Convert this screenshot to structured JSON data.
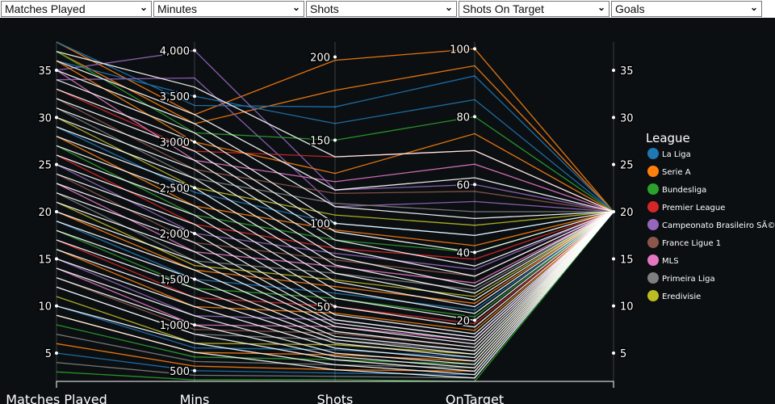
{
  "dropdowns": [
    "Matches Played",
    "Minutes",
    "Shots",
    "Shots On Target",
    "Goals"
  ],
  "chart_data": {
    "type": "parallel-coordinates",
    "dimensions": [
      {
        "label": "Matches Played",
        "range": [
          2,
          38
        ],
        "ticks": [
          5,
          10,
          15,
          20,
          25,
          30,
          35
        ]
      },
      {
        "label": "Mins",
        "range": [
          383,
          4093
        ],
        "ticks": [
          500,
          1000,
          1500,
          2000,
          2500,
          3000,
          3500,
          4000
        ]
      },
      {
        "label": "Shots",
        "range": [
          5,
          209
        ],
        "ticks": [
          50,
          100,
          150,
          200
        ]
      },
      {
        "label": "OnTarget",
        "range": [
          2,
          102
        ],
        "ticks": [
          20,
          40,
          60,
          80,
          100
        ]
      },
      {
        "label": "",
        "range": [
          2,
          38
        ],
        "ticks": [
          5,
          10,
          15,
          20,
          25,
          30,
          35
        ]
      }
    ],
    "legend": {
      "title": "League",
      "placement": "right",
      "entries": [
        {
          "name": "La Liga",
          "color": "#1f77b4"
        },
        {
          "name": "Serie A",
          "color": "#ff7f0e"
        },
        {
          "name": "Bundesliga",
          "color": "#2ca02c"
        },
        {
          "name": "Premier League",
          "color": "#d62728"
        },
        {
          "name": "Campeonato Brasileiro SÃ©rie A",
          "color": "#9467bd"
        },
        {
          "name": "France Ligue 1",
          "color": "#8c564b"
        },
        {
          "name": "MLS",
          "color": "#e377c2"
        },
        {
          "name": "Primeira Liga",
          "color": "#7f7f7f"
        },
        {
          "name": "Eredivisie",
          "color": "#bcbd22"
        }
      ]
    },
    "rows": [
      [
        38,
        3300,
        198,
        100,
        20,
        1
      ],
      [
        37,
        3200,
        180,
        95,
        20,
        1
      ],
      [
        36,
        3500,
        160,
        85,
        20,
        0
      ],
      [
        38,
        3400,
        170,
        92,
        20,
        0
      ],
      [
        35,
        4000,
        120,
        60,
        20,
        4
      ],
      [
        34,
        3700,
        110,
        55,
        20,
        4
      ],
      [
        37,
        3100,
        150,
        80,
        20,
        2
      ],
      [
        33,
        2900,
        140,
        70,
        20,
        3
      ],
      [
        36,
        3000,
        130,
        75,
        20,
        1
      ],
      [
        35,
        2800,
        125,
        66,
        20,
        6
      ],
      [
        32,
        2700,
        118,
        58,
        20,
        5
      ],
      [
        31,
        2600,
        112,
        52,
        20,
        7
      ],
      [
        30,
        2500,
        105,
        48,
        20,
        8
      ],
      [
        29,
        2450,
        100,
        45,
        20,
        0
      ],
      [
        28,
        2300,
        96,
        42,
        20,
        1
      ],
      [
        27,
        2200,
        90,
        40,
        20,
        2
      ],
      [
        26,
        2100,
        85,
        38,
        20,
        3
      ],
      [
        25,
        2000,
        82,
        35,
        20,
        4
      ],
      [
        24,
        1900,
        78,
        33,
        20,
        5
      ],
      [
        23,
        1800,
        74,
        31,
        20,
        6
      ],
      [
        22,
        1700,
        70,
        29,
        20,
        7
      ],
      [
        21,
        1650,
        66,
        27,
        20,
        8
      ],
      [
        20,
        1600,
        62,
        25,
        20,
        1
      ],
      [
        19,
        1500,
        58,
        23,
        20,
        0
      ],
      [
        18,
        1400,
        55,
        21,
        20,
        2
      ],
      [
        17,
        1300,
        50,
        19,
        20,
        3
      ],
      [
        16,
        1200,
        46,
        17,
        20,
        1
      ],
      [
        15,
        1100,
        42,
        15,
        20,
        4
      ],
      [
        14,
        1000,
        38,
        14,
        20,
        6
      ],
      [
        13,
        950,
        34,
        12,
        20,
        5
      ],
      [
        12,
        900,
        30,
        11,
        20,
        7
      ],
      [
        11,
        800,
        27,
        10,
        20,
        8
      ],
      [
        10,
        750,
        24,
        9,
        20,
        0
      ],
      [
        9,
        700,
        21,
        8,
        20,
        1
      ],
      [
        8,
        650,
        18,
        7,
        20,
        2
      ],
      [
        7,
        600,
        15,
        6,
        20,
        7
      ],
      [
        6,
        550,
        12,
        5,
        20,
        1
      ],
      [
        5,
        500,
        10,
        4,
        20,
        0
      ],
      [
        4,
        450,
        8,
        3,
        20,
        7
      ],
      [
        3,
        400,
        6,
        2,
        20,
        2
      ],
      [
        37,
        3600,
        140,
        70,
        20,
        -1
      ],
      [
        36,
        3300,
        120,
        62,
        20,
        -1
      ],
      [
        35,
        3200,
        110,
        50,
        20,
        -1
      ],
      [
        34,
        3100,
        100,
        45,
        20,
        -1
      ],
      [
        33,
        3000,
        95,
        40,
        20,
        -1
      ],
      [
        32,
        2900,
        90,
        36,
        20,
        -1
      ],
      [
        31,
        2800,
        85,
        33,
        20,
        -1
      ],
      [
        30,
        2700,
        80,
        30,
        20,
        -1
      ],
      [
        29,
        2600,
        75,
        28,
        20,
        -1
      ],
      [
        28,
        2500,
        70,
        26,
        20,
        -1
      ],
      [
        27,
        2400,
        65,
        24,
        20,
        -1
      ],
      [
        26,
        2300,
        60,
        22,
        20,
        -1
      ],
      [
        25,
        2200,
        55,
        20,
        20,
        -1
      ],
      [
        24,
        2100,
        50,
        18,
        20,
        -1
      ],
      [
        23,
        2000,
        45,
        16,
        20,
        -1
      ],
      [
        22,
        1900,
        42,
        15,
        20,
        -1
      ],
      [
        21,
        1800,
        40,
        14,
        20,
        -1
      ],
      [
        20,
        1700,
        38,
        13,
        20,
        -1
      ],
      [
        19,
        1600,
        35,
        12,
        20,
        -1
      ],
      [
        18,
        1500,
        32,
        11,
        20,
        -1
      ],
      [
        17,
        1400,
        30,
        10,
        20,
        -1
      ],
      [
        16,
        1300,
        28,
        9,
        20,
        -1
      ],
      [
        15,
        1200,
        25,
        8,
        20,
        -1
      ],
      [
        14,
        1100,
        22,
        7,
        20,
        -1
      ],
      [
        13,
        1000,
        20,
        6,
        20,
        -1
      ],
      [
        12,
        900,
        18,
        5,
        20,
        -1
      ],
      [
        10,
        800,
        15,
        4,
        20,
        -1
      ],
      [
        9,
        700,
        12,
        3,
        20,
        -1
      ]
    ]
  }
}
